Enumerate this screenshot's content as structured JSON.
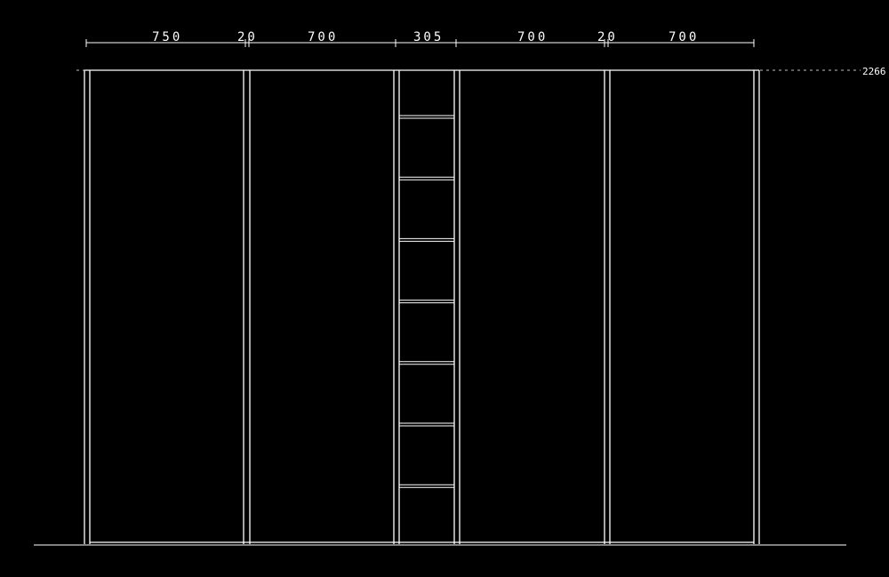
{
  "drawing": {
    "line_color": "#ffffff",
    "background": "#000000",
    "width_dimensions": [
      "750",
      "20",
      "700",
      "305",
      "700",
      "20",
      "700"
    ],
    "height_dimension": "2266",
    "center_column_shelf_count": 7
  }
}
